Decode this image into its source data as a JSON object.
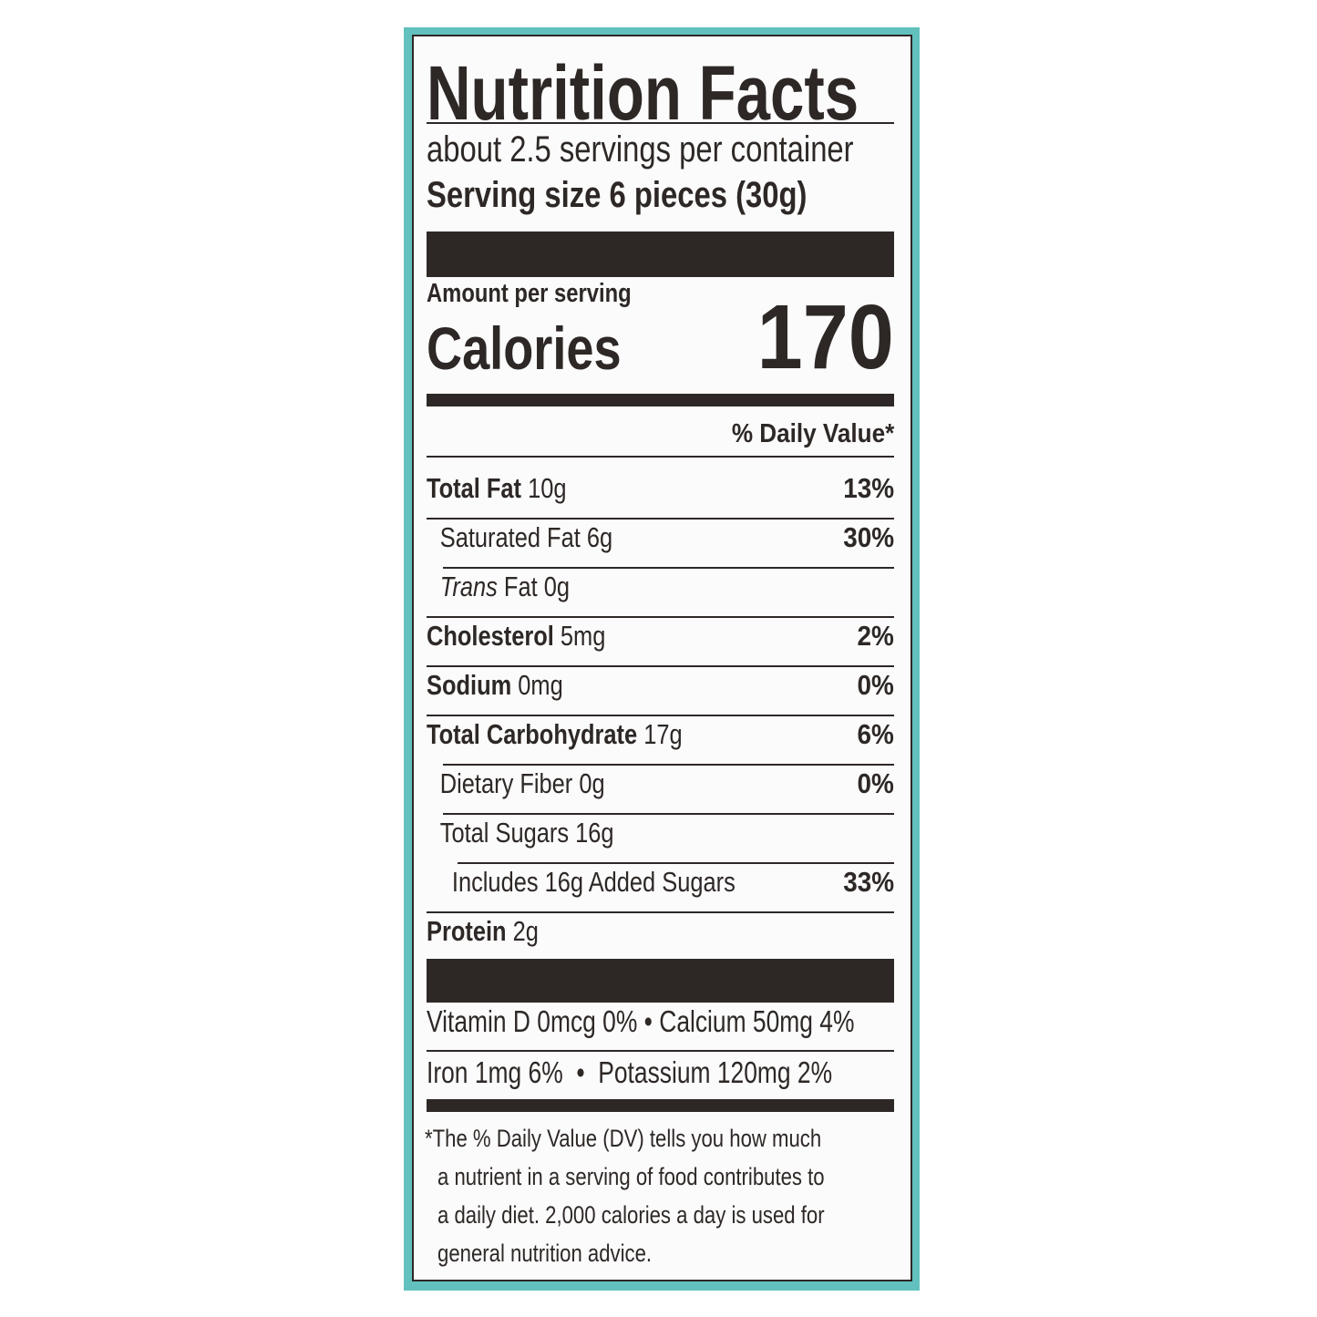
{
  "title": "Nutrition Facts",
  "servings_per_container": "about 2.5 servings per container",
  "serving_size": "Serving size 6 pieces (30g)",
  "amount_per_serving": "Amount per serving",
  "calories_label": "Calories",
  "calories_value": "170",
  "daily_value_header": "% Daily Value*",
  "nutrients": [
    {
      "name": "Total Fat",
      "amount": "10g",
      "dv": "13%"
    },
    {
      "name": "Saturated Fat 6g",
      "amount": "",
      "dv": "30%"
    },
    {
      "name": "Trans",
      "amount": "Fat 0g",
      "dv": ""
    },
    {
      "name": "Cholesterol",
      "amount": "5mg",
      "dv": "2%"
    },
    {
      "name": "Sodium",
      "amount": "0mg",
      "dv": "0%"
    },
    {
      "name": "Total Carbohydrate",
      "amount": "17g",
      "dv": "6%"
    },
    {
      "name": "Dietary Fiber 0g",
      "amount": "",
      "dv": "0%"
    },
    {
      "name": "Total Sugars 16g",
      "amount": "",
      "dv": ""
    },
    {
      "name": "Includes 16g Added Sugars",
      "amount": "",
      "dv": "33%"
    },
    {
      "name": "Protein",
      "amount": "2g",
      "dv": ""
    }
  ],
  "vitamins": {
    "line1": "Vitamin D 0mcg 0% • Calcium 50mg 4%",
    "line2": "Iron 1mg 6%  •  Potassium 120mg 2%"
  },
  "footnote": [
    "*The % Daily Value (DV) tells you how much",
    "a nutrient in a serving of food contributes to",
    "a daily diet. 2,000 calories a day is used for",
    "general nutrition advice."
  ],
  "colors": {
    "background": "#62c1be",
    "ink": "#2d2826"
  }
}
